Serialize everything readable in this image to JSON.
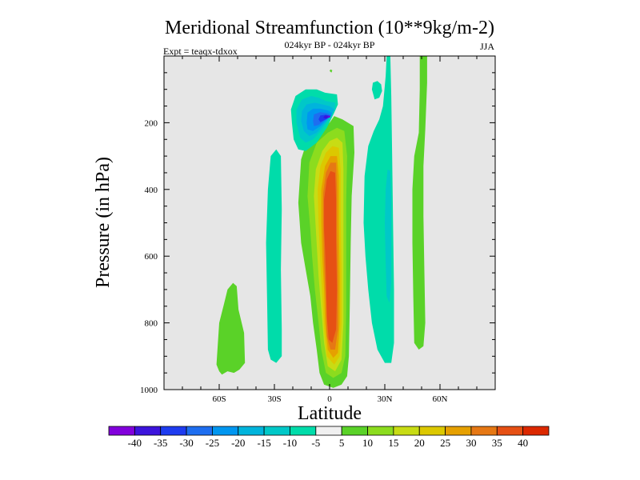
{
  "chart_data": {
    "type": "contour",
    "title": "Meridional Streamfunction (10**9kg/m-2)",
    "subtitle": "024kyr BP - 024kyr BP",
    "expt_label": "Expt = teaqx-tdxox",
    "season": "JJA",
    "xlabel": "Latitude",
    "ylabel": "Pressure (in hPa)",
    "xlim": [
      -90,
      90
    ],
    "ylim": [
      1000,
      0
    ],
    "x_ticks": [
      {
        "value": -60,
        "label": "60S"
      },
      {
        "value": -30,
        "label": "30S"
      },
      {
        "value": 0,
        "label": "0"
      },
      {
        "value": 30,
        "label": "30N"
      },
      {
        "value": 60,
        "label": "60N"
      }
    ],
    "y_ticks": [
      {
        "value": 200,
        "label": "200"
      },
      {
        "value": 400,
        "label": "400"
      },
      {
        "value": 600,
        "label": "600"
      },
      {
        "value": 800,
        "label": "800"
      },
      {
        "value": 1000,
        "label": "1000"
      }
    ],
    "colorbar": {
      "levels": [
        "-40",
        "-35",
        "-30",
        "-25",
        "-20",
        "-15",
        "-10",
        "-5",
        "5",
        "10",
        "15",
        "20",
        "25",
        "30",
        "35",
        "40"
      ],
      "colors": [
        "#8200dc",
        "#3c14dc",
        "#1e3cf0",
        "#1e6ef0",
        "#0096f0",
        "#00b4dc",
        "#00c8c8",
        "#00dcaa",
        "#f0f0f0",
        "#5ad228",
        "#8cdc1e",
        "#c8dc14",
        "#dcc800",
        "#e6a000",
        "#e67814",
        "#e65014",
        "#dc2800"
      ]
    },
    "regions": [
      {
        "name": "sh-positive-cell",
        "level": 5,
        "points": [
          [
            -61.5,
            925
          ],
          [
            -60,
            800
          ],
          [
            -57.5,
            745
          ],
          [
            -55.5,
            700
          ],
          [
            -52.5,
            680
          ],
          [
            -50.5,
            690
          ],
          [
            -49.5,
            760
          ],
          [
            -46.5,
            830
          ],
          [
            -46,
            920
          ],
          [
            -49,
            940
          ],
          [
            -52,
            950
          ],
          [
            -55.5,
            945
          ],
          [
            -58.5,
            955
          ],
          [
            -60,
            945
          ]
        ]
      },
      {
        "name": "sh-negative-cell",
        "level": -5,
        "points": [
          [
            -33.5,
            880
          ],
          [
            -34,
            720
          ],
          [
            -34.5,
            560
          ],
          [
            -33.5,
            400
          ],
          [
            -32,
            300
          ],
          [
            -29,
            280
          ],
          [
            -26.5,
            300
          ],
          [
            -26,
            460
          ],
          [
            -26.5,
            640
          ],
          [
            -26,
            820
          ],
          [
            -26,
            900
          ],
          [
            -29,
            920
          ],
          [
            -32,
            910
          ]
        ]
      },
      {
        "name": "tropical-pos-outer",
        "level": 5,
        "points": [
          [
            -15.5,
            560
          ],
          [
            -17,
            440
          ],
          [
            -15.5,
            310
          ],
          [
            -12,
            250
          ],
          [
            -6,
            225
          ],
          [
            0,
            200
          ],
          [
            2.5,
            180
          ],
          [
            7,
            190
          ],
          [
            13,
            210
          ],
          [
            13.5,
            290
          ],
          [
            12,
            420
          ],
          [
            11.5,
            560
          ],
          [
            11,
            740
          ],
          [
            10.5,
            900
          ],
          [
            9.5,
            960
          ],
          [
            6.5,
            985
          ],
          [
            2,
            995
          ],
          [
            -3,
            985
          ],
          [
            -5.5,
            950
          ],
          [
            -7,
            880
          ],
          [
            -9,
            800
          ],
          [
            -10.5,
            720
          ],
          [
            -13,
            640
          ]
        ]
      },
      {
        "name": "tropical-pos-10",
        "level": 10,
        "points": [
          [
            -10.5,
            520
          ],
          [
            -12,
            420
          ],
          [
            -11,
            320
          ],
          [
            -7,
            260
          ],
          [
            -1,
            230
          ],
          [
            4,
            215
          ],
          [
            8,
            225
          ],
          [
            9.5,
            300
          ],
          [
            9,
            440
          ],
          [
            9,
            600
          ],
          [
            9,
            760
          ],
          [
            8.5,
            900
          ],
          [
            6.5,
            950
          ],
          [
            2,
            965
          ],
          [
            -2,
            950
          ],
          [
            -4.5,
            880
          ],
          [
            -6,
            800
          ],
          [
            -8,
            700
          ],
          [
            -9.5,
            600
          ]
        ]
      },
      {
        "name": "tropical-pos-15",
        "level": 15,
        "points": [
          [
            -7.5,
            520
          ],
          [
            -8.5,
            420
          ],
          [
            -7.5,
            340
          ],
          [
            -4,
            285
          ],
          [
            0,
            255
          ],
          [
            4,
            245
          ],
          [
            7,
            260
          ],
          [
            7.5,
            340
          ],
          [
            7.5,
            480
          ],
          [
            7.5,
            640
          ],
          [
            7.5,
            800
          ],
          [
            6.5,
            910
          ],
          [
            3,
            945
          ],
          [
            -1,
            930
          ],
          [
            -3,
            860
          ],
          [
            -4.5,
            760
          ],
          [
            -6,
            660
          ]
        ]
      },
      {
        "name": "tropical-pos-20",
        "level": 20,
        "points": [
          [
            -6,
            500
          ],
          [
            -6.5,
            400
          ],
          [
            -5,
            330
          ],
          [
            -2,
            290
          ],
          [
            1.5,
            270
          ],
          [
            5,
            275
          ],
          [
            6,
            340
          ],
          [
            6,
            480
          ],
          [
            6.5,
            640
          ],
          [
            6.5,
            800
          ],
          [
            5.5,
            900
          ],
          [
            2.5,
            925
          ],
          [
            -1.5,
            900
          ],
          [
            -3,
            820
          ],
          [
            -4,
            720
          ],
          [
            -5,
            620
          ]
        ]
      },
      {
        "name": "tropical-pos-25",
        "level": 25,
        "points": [
          [
            -4.5,
            500
          ],
          [
            -4.5,
            400
          ],
          [
            -2.5,
            330
          ],
          [
            0.5,
            300
          ],
          [
            4,
            300
          ],
          [
            5,
            360
          ],
          [
            5,
            500
          ],
          [
            5.5,
            660
          ],
          [
            5.5,
            800
          ],
          [
            4.5,
            890
          ],
          [
            2,
            905
          ],
          [
            -1,
            880
          ],
          [
            -2.5,
            800
          ],
          [
            -3,
            700
          ],
          [
            -4,
            600
          ]
        ]
      },
      {
        "name": "tropical-pos-30",
        "level": 30,
        "points": [
          [
            -3.5,
            500
          ],
          [
            -3.5,
            410
          ],
          [
            -2,
            350
          ],
          [
            0.5,
            320
          ],
          [
            3.5,
            320
          ],
          [
            4,
            400
          ],
          [
            4,
            520
          ],
          [
            4.5,
            680
          ],
          [
            4.5,
            820
          ],
          [
            3,
            880
          ],
          [
            0.5,
            880
          ],
          [
            -1.5,
            840
          ],
          [
            -2,
            740
          ],
          [
            -3,
            620
          ]
        ]
      },
      {
        "name": "tropical-pos-35",
        "level": 35,
        "points": [
          [
            -3,
            520
          ],
          [
            -3,
            430
          ],
          [
            -1.5,
            370
          ],
          [
            0.5,
            345
          ],
          [
            3,
            350
          ],
          [
            3.5,
            430
          ],
          [
            3.5,
            560
          ],
          [
            4,
            700
          ],
          [
            3.5,
            820
          ],
          [
            1.5,
            860
          ],
          [
            -0.5,
            850
          ],
          [
            -1.5,
            780
          ],
          [
            -2,
            660
          ],
          [
            -2.5,
            580
          ]
        ]
      },
      {
        "name": "upper-neg-outer",
        "level": -5,
        "points": [
          [
            -20.5,
            200
          ],
          [
            -21,
            160
          ],
          [
            -18.5,
            120
          ],
          [
            -13,
            100
          ],
          [
            -7,
            100
          ],
          [
            -2.5,
            110
          ],
          [
            4,
            115
          ],
          [
            4.5,
            145
          ],
          [
            2.5,
            170
          ],
          [
            -1.5,
            215
          ],
          [
            -7,
            260
          ],
          [
            -13,
            285
          ],
          [
            -17,
            280
          ],
          [
            -19.5,
            250
          ]
        ]
      },
      {
        "name": "upper-neg-10",
        "level": -10,
        "points": [
          [
            -18,
            200
          ],
          [
            -18,
            160
          ],
          [
            -15,
            130
          ],
          [
            -10,
            120
          ],
          [
            -6,
            125
          ],
          [
            -2,
            135
          ],
          [
            3,
            140
          ],
          [
            3,
            160
          ],
          [
            0,
            185
          ],
          [
            -4,
            220
          ],
          [
            -9,
            250
          ],
          [
            -13,
            260
          ],
          [
            -16,
            245
          ]
        ]
      },
      {
        "name": "upper-neg-15",
        "level": -15,
        "points": [
          [
            -15.5,
            195
          ],
          [
            -15,
            165
          ],
          [
            -12.5,
            145
          ],
          [
            -8,
            140
          ],
          [
            -4,
            145
          ],
          [
            0,
            150
          ],
          [
            2.5,
            160
          ],
          [
            1,
            180
          ],
          [
            -3,
            205
          ],
          [
            -7,
            230
          ],
          [
            -11,
            240
          ],
          [
            -14,
            225
          ]
        ]
      },
      {
        "name": "upper-neg-20",
        "level": -20,
        "points": [
          [
            -12.5,
            200
          ],
          [
            -12,
            170
          ],
          [
            -9,
            158
          ],
          [
            -5,
            158
          ],
          [
            -1,
            163
          ],
          [
            1.5,
            172
          ],
          [
            -1,
            188
          ],
          [
            -5,
            210
          ],
          [
            -9,
            225
          ],
          [
            -12,
            220
          ]
        ]
      },
      {
        "name": "upper-neg-25",
        "level": -25,
        "points": [
          [
            -9,
            195
          ],
          [
            -8.5,
            175
          ],
          [
            -5,
            168
          ],
          [
            -1,
            172
          ],
          [
            1,
            178
          ],
          [
            -2,
            190
          ],
          [
            -6,
            207
          ],
          [
            -8.5,
            210
          ]
        ]
      },
      {
        "name": "upper-neg-30",
        "level": -30,
        "points": [
          [
            -6,
            190
          ],
          [
            -5,
            178
          ],
          [
            -2,
            176
          ],
          [
            0.5,
            180
          ],
          [
            -2,
            190
          ],
          [
            -5,
            198
          ]
        ]
      },
      {
        "name": "upper-neg-35",
        "level": -35,
        "points": [
          [
            -3.5,
            185
          ],
          [
            -2.5,
            178
          ],
          [
            0,
            179
          ],
          [
            0.5,
            183
          ],
          [
            -2,
            188
          ]
        ]
      },
      {
        "name": "upper-neg-40",
        "level": -40,
        "points": [
          [
            -1.5,
            183
          ],
          [
            -0.5,
            180
          ],
          [
            0.5,
            181
          ],
          [
            0,
            184
          ]
        ]
      },
      {
        "name": "nh-neg-cell-main",
        "level": -5,
        "points": [
          [
            18.5,
            500
          ],
          [
            19,
            360
          ],
          [
            21,
            270
          ],
          [
            24,
            225
          ],
          [
            27,
            190
          ],
          [
            29,
            150
          ],
          [
            30.5,
            60
          ],
          [
            31,
            0
          ],
          [
            33,
            0
          ],
          [
            33.5,
            120
          ],
          [
            34,
            300
          ],
          [
            34.5,
            500
          ],
          [
            35,
            700
          ],
          [
            35,
            860
          ],
          [
            33.5,
            920
          ],
          [
            30,
            920
          ],
          [
            26,
            880
          ],
          [
            23,
            800
          ],
          [
            21,
            700
          ],
          [
            19.5,
            600
          ]
        ]
      },
      {
        "name": "nh-neg-cell-top",
        "level": -5,
        "points": [
          [
            23,
            100
          ],
          [
            23.5,
            80
          ],
          [
            26,
            75
          ],
          [
            28,
            85
          ],
          [
            28.5,
            105
          ],
          [
            27,
            125
          ],
          [
            24.5,
            130
          ]
        ]
      },
      {
        "name": "nh-neg-inner",
        "level": -10,
        "points": [
          [
            30,
            500
          ],
          [
            30.5,
            400
          ],
          [
            31.5,
            340
          ],
          [
            33,
            345
          ],
          [
            33.5,
            430
          ],
          [
            33.5,
            560
          ],
          [
            33.5,
            680
          ],
          [
            32.5,
            740
          ],
          [
            31,
            720
          ],
          [
            30.5,
            620
          ]
        ]
      },
      {
        "name": "nh-pos-cell",
        "level": 5,
        "points": [
          [
            46,
            860
          ],
          [
            45.5,
            720
          ],
          [
            45,
            560
          ],
          [
            45,
            400
          ],
          [
            46,
            300
          ],
          [
            48.5,
            230
          ],
          [
            49,
            100
          ],
          [
            49,
            0
          ],
          [
            53,
            0
          ],
          [
            53,
            80
          ],
          [
            52,
            220
          ],
          [
            51,
            330
          ],
          [
            51,
            480
          ],
          [
            51.5,
            650
          ],
          [
            52,
            800
          ],
          [
            51,
            870
          ],
          [
            48.5,
            880
          ]
        ]
      },
      {
        "name": "small-pos-upper",
        "level": 5,
        "points": [
          [
            0,
            45
          ],
          [
            0.5,
            40
          ],
          [
            1.5,
            43
          ],
          [
            1,
            50
          ]
        ]
      }
    ]
  }
}
